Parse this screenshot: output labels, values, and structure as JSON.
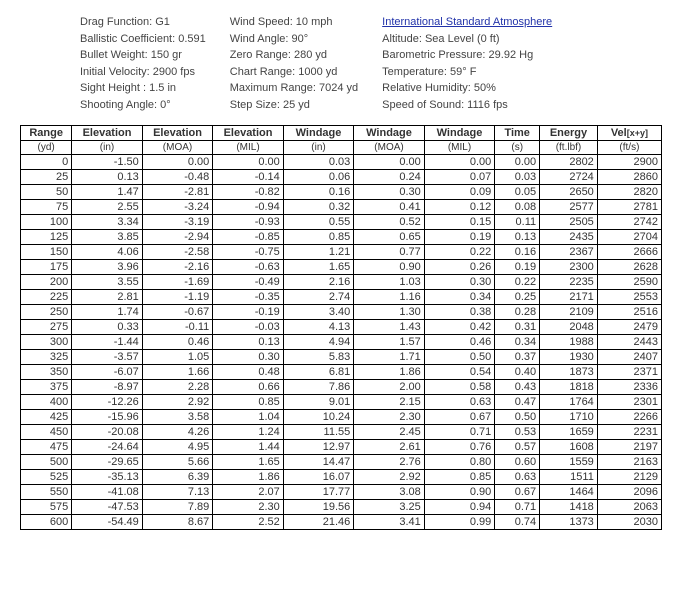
{
  "meta": {
    "col1": {
      "drag_function": "Drag Function: G1",
      "bc": "Ballistic Coefficient: 0.591",
      "bullet_weight": "Bullet Weight: 150 gr",
      "initial_velocity": "Initial Velocity: 2900 fps",
      "sight_height": "Sight Height : 1.5 in",
      "shooting_angle": "Shooting Angle: 0°"
    },
    "col2": {
      "wind_speed": "Wind Speed: 10 mph",
      "wind_angle": "Wind Angle: 90°",
      "zero_range": "Zero Range: 280 yd",
      "chart_range": "Chart Range: 1000 yd",
      "max_range": "Maximum Range: 7024 yd",
      "step_size": "Step Size: 25 yd"
    },
    "col3": {
      "atm_header": "International Standard Atmosphere",
      "altitude": "Altitude: Sea Level (0 ft)",
      "pressure": "Barometric Pressure: 29.92 Hg",
      "temperature": "Temperature: 59° F",
      "humidity": "Relative Humidity: 50%",
      "speed_of_sound": "Speed of Sound: 1116 fps"
    }
  },
  "table": {
    "headers": [
      "Range",
      "Elevation",
      "Elevation",
      "Elevation",
      "Windage",
      "Windage",
      "Windage",
      "Time",
      "Energy",
      "Vel"
    ],
    "vel_suffix": "[x+y]",
    "units": [
      "(yd)",
      "(in)",
      "(MOA)",
      "(MIL)",
      "(in)",
      "(MOA)",
      "(MIL)",
      "(s)",
      "(ft.lbf)",
      "(ft/s)"
    ],
    "col_widths": [
      "8%",
      "11%",
      "11%",
      "11%",
      "11%",
      "11%",
      "11%",
      "7%",
      "9%",
      "10%"
    ],
    "rows": [
      [
        "0",
        "-1.50",
        "0.00",
        "0.00",
        "0.03",
        "0.00",
        "0.00",
        "0.00",
        "2802",
        "2900"
      ],
      [
        "25",
        "0.13",
        "-0.48",
        "-0.14",
        "0.06",
        "0.24",
        "0.07",
        "0.03",
        "2724",
        "2860"
      ],
      [
        "50",
        "1.47",
        "-2.81",
        "-0.82",
        "0.16",
        "0.30",
        "0.09",
        "0.05",
        "2650",
        "2820"
      ],
      [
        "75",
        "2.55",
        "-3.24",
        "-0.94",
        "0.32",
        "0.41",
        "0.12",
        "0.08",
        "2577",
        "2781"
      ],
      [
        "100",
        "3.34",
        "-3.19",
        "-0.93",
        "0.55",
        "0.52",
        "0.15",
        "0.11",
        "2505",
        "2742"
      ],
      [
        "125",
        "3.85",
        "-2.94",
        "-0.85",
        "0.85",
        "0.65",
        "0.19",
        "0.13",
        "2435",
        "2704"
      ],
      [
        "150",
        "4.06",
        "-2.58",
        "-0.75",
        "1.21",
        "0.77",
        "0.22",
        "0.16",
        "2367",
        "2666"
      ],
      [
        "175",
        "3.96",
        "-2.16",
        "-0.63",
        "1.65",
        "0.90",
        "0.26",
        "0.19",
        "2300",
        "2628"
      ],
      [
        "200",
        "3.55",
        "-1.69",
        "-0.49",
        "2.16",
        "1.03",
        "0.30",
        "0.22",
        "2235",
        "2590"
      ],
      [
        "225",
        "2.81",
        "-1.19",
        "-0.35",
        "2.74",
        "1.16",
        "0.34",
        "0.25",
        "2171",
        "2553"
      ],
      [
        "250",
        "1.74",
        "-0.67",
        "-0.19",
        "3.40",
        "1.30",
        "0.38",
        "0.28",
        "2109",
        "2516"
      ],
      [
        "275",
        "0.33",
        "-0.11",
        "-0.03",
        "4.13",
        "1.43",
        "0.42",
        "0.31",
        "2048",
        "2479"
      ],
      [
        "300",
        "-1.44",
        "0.46",
        "0.13",
        "4.94",
        "1.57",
        "0.46",
        "0.34",
        "1988",
        "2443"
      ],
      [
        "325",
        "-3.57",
        "1.05",
        "0.30",
        "5.83",
        "1.71",
        "0.50",
        "0.37",
        "1930",
        "2407"
      ],
      [
        "350",
        "-6.07",
        "1.66",
        "0.48",
        "6.81",
        "1.86",
        "0.54",
        "0.40",
        "1873",
        "2371"
      ],
      [
        "375",
        "-8.97",
        "2.28",
        "0.66",
        "7.86",
        "2.00",
        "0.58",
        "0.43",
        "1818",
        "2336"
      ],
      [
        "400",
        "-12.26",
        "2.92",
        "0.85",
        "9.01",
        "2.15",
        "0.63",
        "0.47",
        "1764",
        "2301"
      ],
      [
        "425",
        "-15.96",
        "3.58",
        "1.04",
        "10.24",
        "2.30",
        "0.67",
        "0.50",
        "1710",
        "2266"
      ],
      [
        "450",
        "-20.08",
        "4.26",
        "1.24",
        "11.55",
        "2.45",
        "0.71",
        "0.53",
        "1659",
        "2231"
      ],
      [
        "475",
        "-24.64",
        "4.95",
        "1.44",
        "12.97",
        "2.61",
        "0.76",
        "0.57",
        "1608",
        "2197"
      ],
      [
        "500",
        "-29.65",
        "5.66",
        "1.65",
        "14.47",
        "2.76",
        "0.80",
        "0.60",
        "1559",
        "2163"
      ],
      [
        "525",
        "-35.13",
        "6.39",
        "1.86",
        "16.07",
        "2.92",
        "0.85",
        "0.63",
        "1511",
        "2129"
      ],
      [
        "550",
        "-41.08",
        "7.13",
        "2.07",
        "17.77",
        "3.08",
        "0.90",
        "0.67",
        "1464",
        "2096"
      ],
      [
        "575",
        "-47.53",
        "7.89",
        "2.30",
        "19.56",
        "3.25",
        "0.94",
        "0.71",
        "1418",
        "2063"
      ],
      [
        "600",
        "-54.49",
        "8.67",
        "2.52",
        "21.46",
        "3.41",
        "0.99",
        "0.74",
        "1373",
        "2030"
      ]
    ]
  }
}
